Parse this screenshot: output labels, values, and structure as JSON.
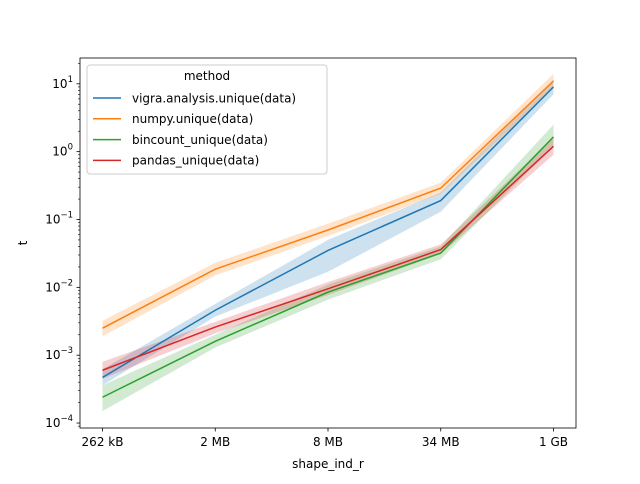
{
  "chart_data": {
    "type": "line",
    "title": "",
    "xlabel": "shape_ind_r",
    "ylabel": "t",
    "categories": [
      "262 kB",
      "2 MB",
      "8 MB",
      "34 MB",
      "1 GB"
    ],
    "yscale": "log",
    "ylim": [
      8.45e-05,
      24
    ],
    "yticks": [
      {
        "value": 0.0001,
        "base": "10",
        "exp": "−4"
      },
      {
        "value": 0.001,
        "base": "10",
        "exp": "−3"
      },
      {
        "value": 0.01,
        "base": "10",
        "exp": "−2"
      },
      {
        "value": 0.1,
        "base": "10",
        "exp": "−1"
      },
      {
        "value": 1,
        "base": "10",
        "exp": "0"
      },
      {
        "value": 10,
        "base": "10",
        "exp": "1"
      }
    ],
    "grid": false,
    "legend": {
      "title": "method",
      "placement": "upper-left"
    },
    "series": [
      {
        "name": "vigra.analysis.unique(data)",
        "color": "#1f77b4",
        "values": [
          0.00047,
          0.0046,
          0.035,
          0.19,
          9.0
        ],
        "lower": [
          0.00036,
          0.0037,
          0.017,
          0.13,
          7.0
        ],
        "upper": [
          0.00062,
          0.0057,
          0.05,
          0.25,
          11.5
        ]
      },
      {
        "name": "numpy.unique(data)",
        "color": "#ff7f0e",
        "values": [
          0.0025,
          0.0185,
          0.07,
          0.29,
          11.0
        ],
        "lower": [
          0.0019,
          0.015,
          0.057,
          0.24,
          8.5
        ],
        "upper": [
          0.0032,
          0.023,
          0.087,
          0.35,
          14.0
        ]
      },
      {
        "name": "bincount_unique(data)",
        "color": "#2ca02c",
        "values": [
          0.00024,
          0.0016,
          0.0085,
          0.032,
          1.65
        ],
        "lower": [
          0.00015,
          0.0013,
          0.0066,
          0.026,
          1.2
        ],
        "upper": [
          0.00036,
          0.002,
          0.011,
          0.04,
          2.5
        ]
      },
      {
        "name": "pandas_unique(data)",
        "color": "#d62728",
        "values": [
          0.0006,
          0.0026,
          0.0095,
          0.036,
          1.2
        ],
        "lower": [
          0.00045,
          0.0021,
          0.0077,
          0.031,
          0.9
        ],
        "upper": [
          0.0008,
          0.0031,
          0.012,
          0.043,
          1.6
        ]
      }
    ]
  }
}
